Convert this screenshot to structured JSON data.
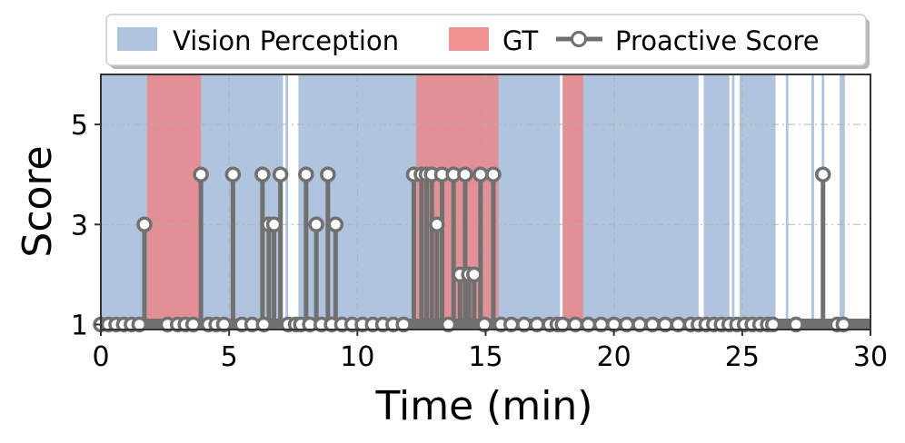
{
  "chart_data": {
    "type": "line",
    "xlabel": "Time (min)",
    "ylabel": "Score",
    "xlim": [
      0,
      30
    ],
    "ylim": [
      0.9,
      6
    ],
    "x_ticks": [
      0,
      5,
      10,
      15,
      20,
      25,
      30
    ],
    "y_ticks": [
      1,
      3,
      5
    ],
    "grid": true,
    "legend_position": "top",
    "legend": {
      "vision": "Vision Perception",
      "gt": "GT",
      "score": "Proactive Score"
    },
    "colors": {
      "vision": "#b0c4de",
      "gt": "#f08080",
      "score": "#707070"
    },
    "vision_intervals": [
      [
        0,
        7.1
      ],
      [
        7.2,
        7.3
      ],
      [
        7.7,
        11.0
      ],
      [
        11.0,
        17.9
      ],
      [
        18.0,
        23.3
      ],
      [
        23.5,
        24.5
      ],
      [
        24.6,
        24.7
      ],
      [
        24.9,
        26.3
      ],
      [
        26.7,
        26.8
      ],
      [
        27.7,
        27.8
      ],
      [
        28.1,
        28.2
      ],
      [
        28.8,
        29.0
      ]
    ],
    "gt_intervals": [
      [
        1.8,
        3.9
      ],
      [
        12.3,
        15.5
      ],
      [
        18.0,
        18.8
      ]
    ],
    "series": [
      {
        "name": "Proactive Score",
        "x": [
          0.0,
          0.3,
          0.6,
          0.9,
          1.2,
          1.5,
          1.7,
          2.6,
          3.0,
          3.3,
          3.6,
          3.9,
          4.2,
          4.5,
          4.8,
          5.15,
          5.5,
          5.9,
          6.3,
          6.35,
          6.55,
          6.75,
          7.0,
          7.3,
          7.6,
          7.8,
          8.0,
          8.15,
          8.4,
          8.6,
          8.85,
          9.0,
          9.15,
          9.4,
          9.8,
          10.2,
          10.6,
          11.0,
          11.4,
          11.8,
          12.2,
          12.5,
          12.7,
          12.9,
          13.1,
          13.3,
          13.55,
          13.75,
          14.0,
          14.2,
          14.35,
          14.55,
          14.8,
          14.95,
          15.3,
          15.6,
          16.0,
          16.5,
          17.0,
          17.5,
          17.8,
          18.0,
          18.5,
          19.0,
          19.5,
          20.0,
          20.5,
          21.0,
          21.5,
          22.0,
          22.5,
          23.0,
          23.3,
          23.6,
          23.9,
          24.2,
          24.5,
          24.8,
          25.1,
          25.4,
          25.7,
          26.0,
          26.2,
          27.1,
          28.15,
          28.7,
          28.95
        ],
        "y": [
          1,
          1,
          1,
          1,
          1,
          1,
          3,
          1,
          1,
          1,
          1,
          4,
          1,
          1,
          1,
          4,
          1,
          1,
          4,
          1,
          3,
          3,
          4,
          1,
          1,
          1,
          4,
          1,
          3,
          1,
          4,
          1,
          3,
          1,
          1,
          1,
          1,
          1,
          1,
          1,
          4,
          4,
          4,
          4,
          3,
          4,
          1,
          4,
          2,
          4,
          2,
          2,
          4,
          1,
          4,
          1,
          1,
          1,
          1,
          1,
          1,
          1,
          1,
          1,
          1,
          1,
          1,
          1,
          1,
          1,
          1,
          1,
          1,
          1,
          1,
          1,
          1,
          1,
          1,
          1,
          1,
          1,
          1,
          1,
          4,
          1,
          1
        ]
      }
    ]
  }
}
